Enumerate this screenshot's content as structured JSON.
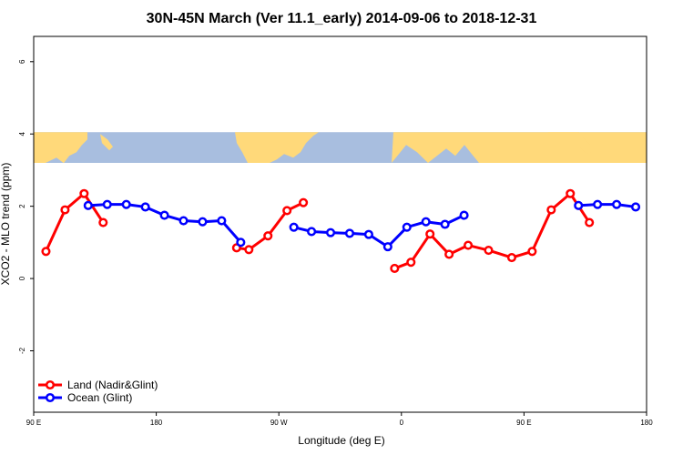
{
  "chart_data": {
    "type": "line",
    "title": "30N-45N March (Ver 11.1_early)   2014-09-06 to 2018-12-31",
    "xlabel": "Longitude (deg E)",
    "ylabel": "XCO2 - MLO trend (ppm)",
    "xlim": [
      90,
      540
    ],
    "ylim": [
      -3.7,
      6.7
    ],
    "x_ticks": [
      {
        "value": 90,
        "label": "90 E"
      },
      {
        "value": 180,
        "label": "180"
      },
      {
        "value": 270,
        "label": "90 W"
      },
      {
        "value": 360,
        "label": "0"
      },
      {
        "value": 450,
        "label": "90 E"
      },
      {
        "value": 540,
        "label": "180"
      }
    ],
    "y_ticks": [
      {
        "value": -2,
        "label": "-2"
      },
      {
        "value": 0,
        "label": "0"
      },
      {
        "value": 2,
        "label": "2"
      },
      {
        "value": 4,
        "label": "4"
      },
      {
        "value": 6,
        "label": "6"
      }
    ],
    "map_band": {
      "y_top": 4.05,
      "y_bottom": 3.2,
      "land_color": "#FFD97A",
      "ocean_color": "#A8BEDF"
    },
    "legend_position": "bottom-left",
    "series": [
      {
        "name": "Land (Nadir&Glint)",
        "color": "#FF0000",
        "segments": [
          [
            [
              99,
              0.75
            ],
            [
              113,
              1.9
            ],
            [
              127,
              2.35
            ],
            [
              141,
              1.55
            ]
          ],
          [
            [
              239,
              0.85
            ],
            [
              248,
              0.8
            ],
            [
              262,
              1.18
            ],
            [
              276,
              1.88
            ],
            [
              288,
              2.1
            ]
          ],
          [
            [
              355,
              0.28
            ],
            [
              367,
              0.45
            ],
            [
              381,
              1.23
            ],
            [
              395,
              0.67
            ],
            [
              409,
              0.92
            ],
            [
              424,
              0.78
            ],
            [
              441,
              0.58
            ],
            [
              456,
              0.75
            ],
            [
              470,
              1.9
            ],
            [
              484,
              2.35
            ],
            [
              498,
              1.55
            ]
          ]
        ]
      },
      {
        "name": "Ocean (Glint)",
        "color": "#0000FF",
        "segments": [
          [
            [
              130,
              2.02
            ],
            [
              144,
              2.05
            ],
            [
              158,
              2.05
            ],
            [
              172,
              1.98
            ],
            [
              186,
              1.75
            ],
            [
              200,
              1.6
            ],
            [
              214,
              1.57
            ],
            [
              228,
              1.6
            ],
            [
              242,
              1.0
            ]
          ],
          [
            [
              281,
              1.42
            ],
            [
              294,
              1.3
            ],
            [
              308,
              1.27
            ],
            [
              322,
              1.25
            ],
            [
              336,
              1.22
            ],
            [
              350,
              0.88
            ],
            [
              364,
              1.42
            ],
            [
              378,
              1.57
            ],
            [
              392,
              1.5
            ],
            [
              406,
              1.75
            ]
          ],
          [
            [
              490,
              2.02
            ],
            [
              504,
              2.05
            ],
            [
              518,
              2.05
            ],
            [
              532,
              1.98
            ]
          ]
        ]
      }
    ]
  }
}
